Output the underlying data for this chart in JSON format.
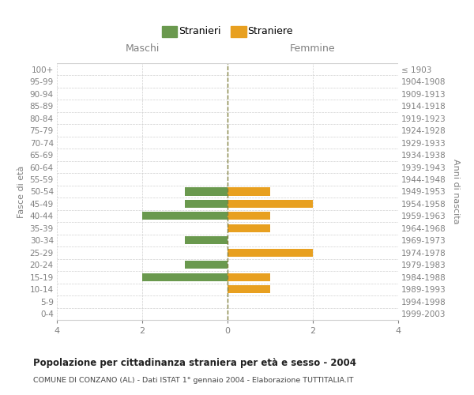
{
  "age_groups": [
    "0-4",
    "5-9",
    "10-14",
    "15-19",
    "20-24",
    "25-29",
    "30-34",
    "35-39",
    "40-44",
    "45-49",
    "50-54",
    "55-59",
    "60-64",
    "65-69",
    "70-74",
    "75-79",
    "80-84",
    "85-89",
    "90-94",
    "95-99",
    "100+"
  ],
  "birth_years": [
    "1999-2003",
    "1994-1998",
    "1989-1993",
    "1984-1988",
    "1979-1983",
    "1974-1978",
    "1969-1973",
    "1964-1968",
    "1959-1963",
    "1954-1958",
    "1949-1953",
    "1944-1948",
    "1939-1943",
    "1934-1938",
    "1929-1933",
    "1924-1928",
    "1919-1923",
    "1914-1918",
    "1909-1913",
    "1904-1908",
    "≤ 1903"
  ],
  "maschi": [
    0,
    0,
    0,
    -2,
    -1,
    0,
    -1,
    0,
    -2,
    -1,
    -1,
    0,
    0,
    0,
    0,
    0,
    0,
    0,
    0,
    0,
    0
  ],
  "femmine": [
    0,
    0,
    1,
    1,
    0,
    2,
    0,
    1,
    1,
    2,
    1,
    0,
    0,
    0,
    0,
    0,
    0,
    0,
    0,
    0,
    0
  ],
  "male_color": "#6a994e",
  "female_color": "#e8a020",
  "male_label": "Stranieri",
  "female_label": "Straniere",
  "maschi_header": "Maschi",
  "femmine_header": "Femmine",
  "left_ylabel": "Fasce di età",
  "right_ylabel": "Anni di nascita",
  "xlim": 4,
  "xticks": [
    -4,
    -2,
    0,
    2,
    4
  ],
  "xticklabels": [
    "4",
    "2",
    "0",
    "2",
    "4"
  ],
  "title": "Popolazione per cittadinanza straniera per età e sesso - 2004",
  "subtitle": "COMUNE DI CONZANO (AL) - Dati ISTAT 1° gennaio 2004 - Elaborazione TUTTITALIA.IT",
  "background_color": "#ffffff",
  "grid_color": "#d0d0d0",
  "dashed_line_color": "#808040",
  "header_color": "#808080",
  "tick_color": "#808080",
  "right_ylabel_color": "#555555"
}
